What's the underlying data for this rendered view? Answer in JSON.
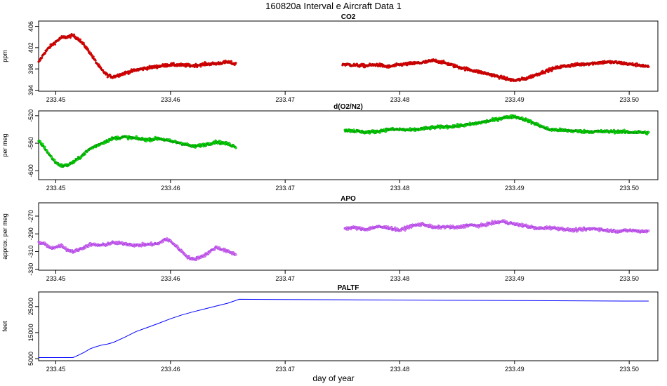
{
  "figure": {
    "title": "160820a   Interval e Aircraft Data 1",
    "xlabel": "day of year"
  },
  "chart_data": [
    {
      "type": "scatter",
      "title": "CO2",
      "ylabel": "ppm",
      "xlim": [
        233.4485,
        233.5025
      ],
      "ylim": [
        393.8,
        407.0
      ],
      "xticks": [
        "233.45",
        "233.46",
        "233.47",
        "233.48",
        "233.49",
        "233.50"
      ],
      "xtick_values": [
        233.45,
        233.46,
        233.47,
        233.48,
        233.49,
        233.5
      ],
      "yticks": [
        "394",
        "398",
        "402",
        "406"
      ],
      "ytick_values": [
        394,
        398,
        402,
        406
      ],
      "color": "#ff0000",
      "edge_color": "#8b0000",
      "series": [
        {
          "x": [
            233.4485,
            233.449,
            233.4495,
            233.45,
            233.4505,
            233.451,
            233.4515,
            233.452,
            233.4525,
            233.453,
            233.4535,
            233.454,
            233.4545,
            233.455,
            233.456,
            233.457,
            233.458,
            233.459,
            233.46,
            233.461,
            233.462,
            233.463,
            233.464,
            233.465,
            233.4657,
            233.475,
            233.476,
            233.477,
            233.478,
            233.479,
            233.48,
            233.481,
            233.482,
            233.483,
            233.484,
            233.485,
            233.486,
            233.487,
            233.488,
            233.489,
            233.49,
            233.491,
            233.492,
            233.493,
            233.494,
            233.495,
            233.496,
            233.497,
            233.498,
            233.499,
            233.5,
            233.501,
            233.5017
          ],
          "y": [
            399.2,
            401.0,
            402.2,
            403.1,
            403.9,
            404.0,
            404.3,
            403.6,
            402.4,
            401.0,
            399.3,
            397.8,
            396.8,
            396.5,
            397.2,
            397.8,
            398.2,
            398.5,
            398.8,
            398.7,
            398.6,
            398.9,
            399.0,
            399.3,
            398.9,
            398.9,
            398.7,
            398.6,
            398.8,
            398.4,
            398.8,
            399.0,
            399.2,
            399.6,
            399.1,
            398.4,
            397.9,
            397.4,
            396.9,
            396.3,
            395.8,
            396.2,
            397.0,
            397.8,
            398.4,
            398.7,
            398.9,
            399.1,
            399.3,
            399.2,
            398.9,
            398.7,
            398.3
          ]
        }
      ]
    },
    {
      "type": "scatter",
      "title": "d(O2/N2)",
      "ylabel": "per meg",
      "xlim": [
        233.4485,
        233.5025
      ],
      "ylim": [
        -613,
        -513
      ],
      "xticks": [
        "233.45",
        "233.46",
        "233.47",
        "233.48",
        "233.49",
        "233.50"
      ],
      "xtick_values": [
        233.45,
        233.46,
        233.47,
        233.48,
        233.49,
        233.5
      ],
      "yticks": [
        "-600",
        "-560",
        "-520"
      ],
      "ytick_values": [
        -600,
        -560,
        -520
      ],
      "color": "#00ff00",
      "edge_color": "#006400",
      "series": [
        {
          "x": [
            233.4485,
            233.449,
            233.4495,
            233.45,
            233.4505,
            233.451,
            233.4515,
            233.452,
            233.4525,
            233.453,
            233.454,
            233.455,
            233.456,
            233.457,
            233.458,
            233.459,
            233.46,
            233.461,
            233.462,
            233.463,
            233.464,
            233.465,
            233.4657,
            233.4752,
            233.476,
            233.477,
            233.478,
            233.479,
            233.48,
            233.481,
            233.482,
            233.483,
            233.484,
            233.485,
            233.486,
            233.487,
            233.488,
            233.489,
            233.49,
            233.491,
            233.492,
            233.493,
            233.494,
            233.495,
            233.496,
            233.497,
            233.498,
            233.499,
            233.5,
            233.501,
            233.5017
          ],
          "y": [
            -556,
            -566,
            -578,
            -588,
            -593,
            -592,
            -588,
            -582,
            -575,
            -568,
            -560,
            -553,
            -551,
            -553,
            -555,
            -553,
            -557,
            -560,
            -565,
            -562,
            -558,
            -561,
            -565,
            -541,
            -542,
            -544,
            -543,
            -540,
            -540,
            -541,
            -539,
            -537,
            -536,
            -535,
            -533,
            -530,
            -527,
            -523,
            -521,
            -526,
            -533,
            -540,
            -541,
            -542,
            -543,
            -543,
            -543,
            -543,
            -544,
            -544,
            -545
          ]
        }
      ]
    },
    {
      "type": "scatter",
      "title": "APO",
      "ylabel": "approx. per meg",
      "xlim": [
        233.4485,
        233.5025
      ],
      "ylim": [
        -331,
        -255
      ],
      "xticks": [
        "233.45",
        "233.46",
        "233.47",
        "233.48",
        "233.49",
        "233.50"
      ],
      "xtick_values": [
        233.45,
        233.46,
        233.47,
        233.48,
        233.49,
        233.5
      ],
      "yticks": [
        "-330",
        "-310",
        "-290",
        "-270"
      ],
      "ytick_values": [
        -330,
        -310,
        -290,
        -270
      ],
      "color": "#ee82ee",
      "edge_color": "#8a2be2",
      "series": [
        {
          "x": [
            233.4485,
            233.449,
            233.4495,
            233.45,
            233.4505,
            233.451,
            233.4515,
            233.452,
            233.4525,
            233.453,
            233.454,
            233.455,
            233.456,
            233.457,
            233.458,
            233.459,
            233.4595,
            233.46,
            233.4605,
            233.461,
            233.4615,
            233.462,
            233.463,
            233.464,
            233.465,
            233.4657,
            233.4752,
            233.476,
            233.477,
            233.478,
            233.479,
            233.48,
            233.481,
            233.482,
            233.483,
            233.484,
            233.485,
            233.486,
            233.487,
            233.488,
            233.489,
            233.49,
            233.491,
            233.492,
            233.493,
            233.494,
            233.495,
            233.496,
            233.497,
            233.498,
            233.499,
            233.5,
            233.501,
            233.5017
          ],
          "y": [
            -300,
            -301,
            -306,
            -305,
            -303,
            -308,
            -310,
            -308,
            -305,
            -302,
            -303,
            -300,
            -301,
            -303,
            -302,
            -301,
            -296,
            -298,
            -304,
            -310,
            -316,
            -319,
            -314,
            -305,
            -310,
            -313,
            -284,
            -283,
            -285,
            -282,
            -283,
            -286,
            -281,
            -279,
            -283,
            -282,
            -283,
            -280,
            -281,
            -278,
            -276,
            -279,
            -281,
            -284,
            -283,
            -284,
            -286,
            -285,
            -284,
            -286,
            -287,
            -286,
            -287,
            -287
          ]
        }
      ]
    },
    {
      "type": "line",
      "title": "PALTF",
      "ylabel": "feet",
      "xlim": [
        233.4485,
        233.5025
      ],
      "ylim": [
        4200,
        30600
      ],
      "xticks": [
        "233.45",
        "233.46",
        "233.47",
        "233.48",
        "233.49",
        "233.50"
      ],
      "xtick_values": [
        233.45,
        233.46,
        233.47,
        233.48,
        233.49,
        233.5
      ],
      "yticks": [
        "5000",
        "15000",
        "25000"
      ],
      "ytick_values": [
        5000,
        15000,
        25000
      ],
      "color": "#0000ff",
      "series": [
        {
          "x": [
            233.4485,
            233.4515,
            233.452,
            233.4525,
            233.453,
            233.4535,
            233.454,
            233.4545,
            233.455,
            233.456,
            233.457,
            233.458,
            233.459,
            233.46,
            233.461,
            233.462,
            233.463,
            233.464,
            233.465,
            233.466,
            233.47,
            233.475,
            233.48,
            233.485,
            233.49,
            233.495,
            233.5,
            233.5017
          ],
          "y": [
            5400,
            5400,
            6400,
            7500,
            8800,
            9600,
            10200,
            10600,
            11200,
            13200,
            15400,
            17000,
            18600,
            20300,
            21800,
            23000,
            24100,
            25200,
            26300,
            27800,
            27700,
            27600,
            27500,
            27400,
            27300,
            27200,
            27100,
            27100
          ]
        }
      ]
    }
  ]
}
